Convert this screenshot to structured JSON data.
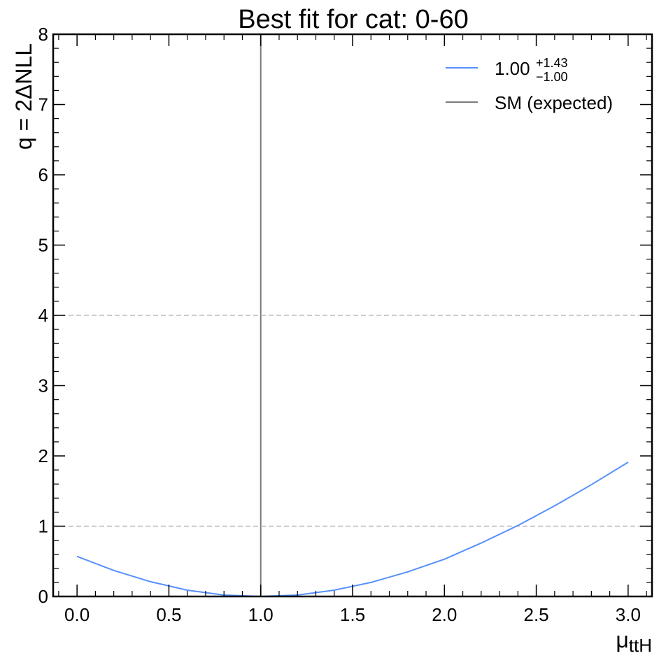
{
  "chart_data": {
    "type": "line",
    "title": "Best fit for cat: 0-60",
    "xlabel_main": "μ",
    "xlabel_sub": "ttH",
    "ylabel": "q = 2ΔNLL",
    "xlim": [
      -0.13,
      3.13
    ],
    "ylim": [
      0,
      8
    ],
    "xticks": [
      0.0,
      0.5,
      1.0,
      1.5,
      2.0,
      2.5,
      3.0
    ],
    "xtick_labels": [
      "0.0",
      "0.5",
      "1.0",
      "1.5",
      "2.0",
      "2.5",
      "3.0"
    ],
    "yticks": [
      0,
      1,
      2,
      3,
      4,
      5,
      6,
      7,
      8
    ],
    "ytick_labels": [
      "0",
      "1",
      "2",
      "3",
      "4",
      "5",
      "6",
      "7",
      "8"
    ],
    "grid": false,
    "legend_position": "top-right",
    "series": [
      {
        "name_main": "1.00",
        "name_sup": "+1.43",
        "name_sub": "−1.00",
        "color": "#5790fc",
        "x": [
          0.0,
          0.2,
          0.4,
          0.6,
          0.8,
          1.0,
          1.2,
          1.4,
          1.6,
          1.8,
          2.0,
          2.2,
          2.4,
          2.6,
          2.8,
          3.0
        ],
        "y": [
          0.57,
          0.37,
          0.21,
          0.09,
          0.02,
          0.0,
          0.02,
          0.09,
          0.2,
          0.35,
          0.53,
          0.76,
          1.01,
          1.29,
          1.59,
          1.91
        ]
      }
    ],
    "reference_lines": [
      {
        "name": "SM (expected)",
        "orientation": "vertical",
        "value": 1.0,
        "color": "#7a7a7a",
        "style": "solid"
      },
      {
        "orientation": "horizontal",
        "value": 1.0,
        "color": "#bbbbbb",
        "style": "dashed"
      },
      {
        "orientation": "horizontal",
        "value": 4.0,
        "color": "#bbbbbb",
        "style": "dashed"
      }
    ]
  }
}
